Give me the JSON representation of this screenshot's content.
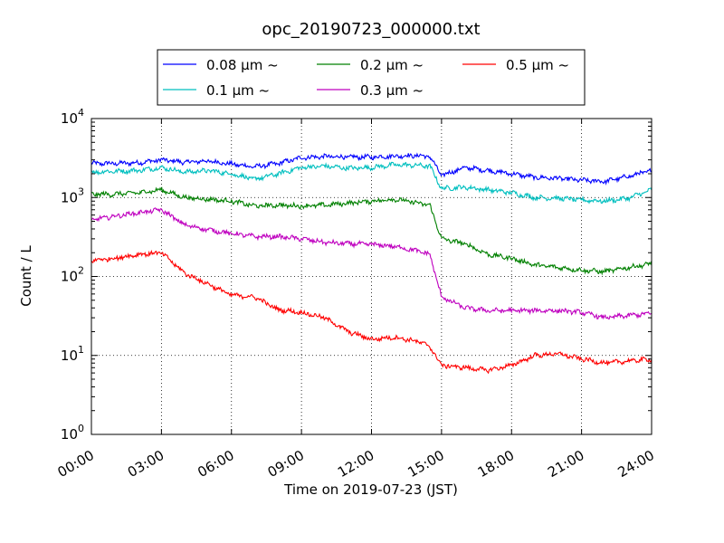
{
  "chart_data": {
    "type": "line",
    "title": "opc_20190723_000000.txt",
    "xlabel": "Time on 2019-07-23 (JST)",
    "ylabel": "Count / L",
    "xlim": [
      "00:00",
      "24:00"
    ],
    "ylim": [
      1,
      10000
    ],
    "y_scale": "log",
    "grid": true,
    "legend_position": "top (outside plot)",
    "x_ticks": [
      "00:00",
      "03:00",
      "06:00",
      "09:00",
      "12:00",
      "15:00",
      "18:00",
      "21:00",
      "24:00"
    ],
    "y_ticks": [
      {
        "base": "10",
        "exp": "0"
      },
      {
        "base": "10",
        "exp": "1"
      },
      {
        "base": "10",
        "exp": "2"
      },
      {
        "base": "10",
        "exp": "3"
      },
      {
        "base": "10",
        "exp": "4"
      }
    ],
    "x": [
      "00:00",
      "01:00",
      "02:00",
      "03:00",
      "04:00",
      "05:00",
      "06:00",
      "07:00",
      "08:00",
      "09:00",
      "10:00",
      "11:00",
      "12:00",
      "13:00",
      "14:00",
      "14:30",
      "15:00",
      "16:00",
      "17:00",
      "18:00",
      "19:00",
      "20:00",
      "21:00",
      "22:00",
      "23:00",
      "24:00"
    ],
    "series": [
      {
        "name": "0.08 μm ~",
        "color": "#0000ff",
        "values": [
          2700,
          2700,
          2750,
          3000,
          2800,
          2900,
          2650,
          2450,
          2700,
          3200,
          3300,
          3250,
          3250,
          3350,
          3400,
          3300,
          1900,
          2400,
          2200,
          2000,
          1800,
          1750,
          1650,
          1600,
          1850,
          2200
        ]
      },
      {
        "name": "0.1 μm ~",
        "color": "#00bfbf",
        "values": [
          2100,
          2150,
          2200,
          2400,
          2100,
          2200,
          2000,
          1700,
          2000,
          2400,
          2500,
          2350,
          2400,
          2600,
          2550,
          2500,
          1300,
          1350,
          1250,
          1150,
          1000,
          980,
          930,
          900,
          980,
          1250
        ]
      },
      {
        "name": "0.2 μm ~",
        "color": "#008000",
        "values": [
          1100,
          1100,
          1150,
          1250,
          1000,
          950,
          900,
          780,
          800,
          780,
          800,
          850,
          900,
          950,
          850,
          800,
          300,
          260,
          190,
          170,
          140,
          130,
          120,
          115,
          130,
          145
        ]
      },
      {
        "name": "0.3 μm ~",
        "color": "#bf00bf",
        "values": [
          520,
          580,
          640,
          700,
          450,
          390,
          350,
          320,
          320,
          300,
          270,
          260,
          255,
          240,
          210,
          190,
          55,
          40,
          37,
          37,
          37,
          37,
          35,
          30,
          32,
          34
        ]
      },
      {
        "name": "0.5 μm ~",
        "color": "#ff0000",
        "values": [
          160,
          170,
          190,
          200,
          110,
          80,
          58,
          55,
          38,
          35,
          30,
          20,
          16,
          17,
          15,
          13,
          7.5,
          7,
          6.5,
          7.5,
          10,
          10.5,
          9,
          8,
          8.5,
          9
        ]
      }
    ]
  }
}
